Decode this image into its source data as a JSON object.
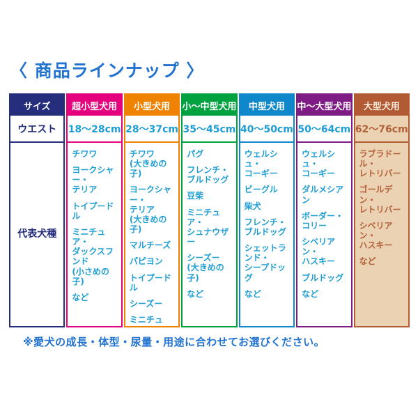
{
  "page": {
    "title": "〈 商品ラインナップ 〉",
    "footnote": "※愛犬の成長・体型・尿量・用途に合わせてお選びください。"
  },
  "colors": {
    "title_blue": "#2273d0",
    "footnote_blue": "#2273d0",
    "label_navy": "#252e7c",
    "breed_text_blue": "#1f9ed4"
  },
  "table": {
    "row_headers": {
      "size": "サイズ",
      "waist": "ウエスト",
      "breeds": "代表犬種"
    },
    "columns": [
      {
        "label": "超小型犬用",
        "waist": "18〜28cm",
        "accent": "#e3017e",
        "header_text_color": "#ffffff",
        "text_color": "#1f9ed4",
        "cell_bg": "#ffffff",
        "breeds": [
          "チワワ",
          "ヨークシャー・\nテリア",
          "トイプードル",
          "ミニチュア・\nダックスフンド\n(小さめの子)",
          "など"
        ]
      },
      {
        "label": "小型犬用",
        "waist": "28〜37cm",
        "accent": "#ef8201",
        "header_text_color": "#ffffff",
        "text_color": "#1f9ed4",
        "cell_bg": "#ffffff",
        "breeds": [
          "チワワ\n(大きめの子)",
          "ヨークシャー・\nテリア\n(大きめの子)",
          "マルチーズ",
          "パピヨン",
          "トイプードル",
          "シーズー",
          "ミニチュア・\nダックスフンド\nなど"
        ]
      },
      {
        "label": "小〜中型犬用",
        "waist": "35〜45cm",
        "accent": "#00a23f",
        "header_text_color": "#ffffff",
        "text_color": "#1f9ed4",
        "cell_bg": "#ffffff",
        "breeds": [
          "パグ",
          "フレンチ・\nブルドッグ",
          "豆柴",
          "ミニチュア・\nシュナウザー",
          "シーズー\n(大きめの子)",
          "など"
        ]
      },
      {
        "label": "中型犬用",
        "waist": "40〜50cm",
        "accent": "#0e88ca",
        "header_text_color": "#ffffff",
        "text_color": "#1f9ed4",
        "cell_bg": "#ffffff",
        "breeds": [
          "ウェルシュ・\nコーギー",
          "ビーグル",
          "柴犬",
          "フレンチ・\nブルドッグ",
          "シェットランド・\nシープドッグ",
          "など"
        ]
      },
      {
        "label": "中〜大型犬用",
        "waist": "50〜64cm",
        "accent": "#7e1b84",
        "header_text_color": "#ffffff",
        "text_color": "#1f9ed4",
        "cell_bg": "#ffffff",
        "breeds": [
          "ウェルシュ・\nコーギー",
          "ダルメシアン",
          "ボーダー・\nコリー",
          "シベリアン・\nハスキー",
          "ブルドッグ",
          "など"
        ]
      },
      {
        "label": "大型犬用",
        "waist": "62〜76cm",
        "accent": "#b25a33",
        "header_text_color": "#f9ead9",
        "text_color": "#b2613a",
        "cell_bg": "#ebd2b3",
        "breeds": [
          "ラブラドール・\nレトリバー",
          "ゴールデン・\nレトリバー",
          "シベリアン・\nハスキー",
          "など"
        ]
      }
    ]
  }
}
